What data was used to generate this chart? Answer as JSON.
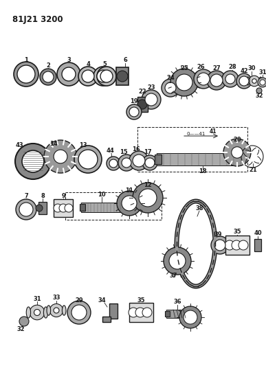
{
  "title": "81J21 3200",
  "bg_color": "#ffffff",
  "line_color": "#1a1a1a",
  "fig_width": 3.87,
  "fig_height": 5.33,
  "dpi": 100
}
